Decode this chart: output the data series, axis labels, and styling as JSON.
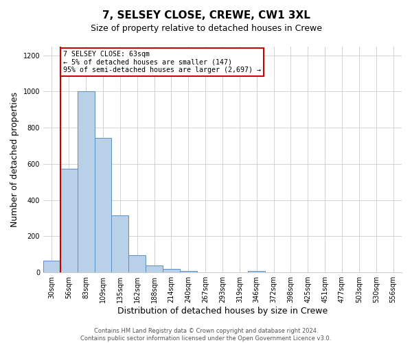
{
  "title": "7, SELSEY CLOSE, CREWE, CW1 3XL",
  "subtitle": "Size of property relative to detached houses in Crewe",
  "xlabel": "Distribution of detached houses by size in Crewe",
  "ylabel": "Number of detached properties",
  "bin_labels": [
    "30sqm",
    "56sqm",
    "83sqm",
    "109sqm",
    "135sqm",
    "162sqm",
    "188sqm",
    "214sqm",
    "240sqm",
    "267sqm",
    "293sqm",
    "319sqm",
    "346sqm",
    "372sqm",
    "398sqm",
    "425sqm",
    "451sqm",
    "477sqm",
    "503sqm",
    "530sqm",
    "556sqm"
  ],
  "bar_values": [
    65,
    575,
    1000,
    745,
    315,
    95,
    38,
    18,
    10,
    0,
    0,
    0,
    10,
    0,
    0,
    0,
    0,
    0,
    0,
    0,
    0
  ],
  "bar_color": "#b8d0e8",
  "bar_edge_color": "#5a8fc0",
  "red_line_bin_edge": 1,
  "red_line_color": "#cc0000",
  "annotation_line1": "7 SELSEY CLOSE: 63sqm",
  "annotation_line2": "← 5% of detached houses are smaller (147)",
  "annotation_line3": "95% of semi-detached houses are larger (2,697) →",
  "annotation_box_color": "#ffffff",
  "annotation_box_edge_color": "#cc0000",
  "ylim": [
    0,
    1250
  ],
  "yticks": [
    0,
    200,
    400,
    600,
    800,
    1000,
    1200
  ],
  "footer_text": "Contains HM Land Registry data © Crown copyright and database right 2024.\nContains public sector information licensed under the Open Government Licence v3.0.",
  "bg_color": "#ffffff",
  "grid_color": "#cccccc",
  "title_fontsize": 11,
  "subtitle_fontsize": 9,
  "xlabel_fontsize": 9,
  "ylabel_fontsize": 9,
  "tick_fontsize": 7,
  "footer_fontsize": 6
}
